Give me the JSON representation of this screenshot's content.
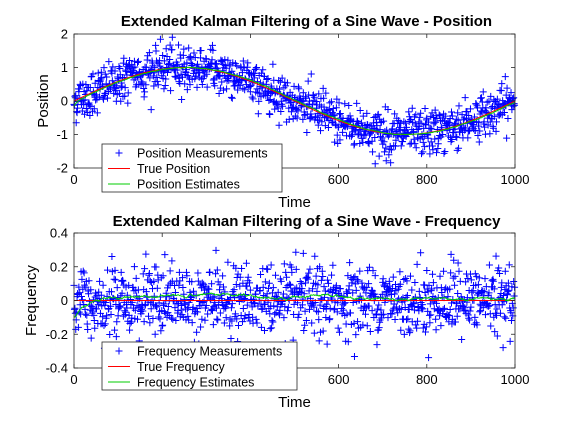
{
  "chart_data": [
    {
      "type": "scatter",
      "title": "Extended Kalman Filtering of a Sine Wave - Position",
      "xlabel": "Time",
      "ylabel": "Position",
      "xlim": [
        0,
        1000
      ],
      "ylim": [
        -2,
        2
      ],
      "xticks": [
        0,
        200,
        400,
        600,
        800,
        1000
      ],
      "yticks": [
        -2,
        -1,
        0,
        1,
        2
      ],
      "legend_position": "bottom-left",
      "series": [
        {
          "name": "Position Measurements",
          "marker": "+",
          "color": "#0000ff",
          "model": "sin(2*pi*t/1000) + noise(sd 0.35)",
          "n": 1000
        },
        {
          "name": "True Position",
          "color": "#ff0000",
          "model": "sin(2*pi*t/1000)"
        },
        {
          "name": "Position Estimates",
          "color": "#00cc00",
          "model": "filter estimate converging to true position"
        }
      ]
    },
    {
      "type": "scatter",
      "title": "Extended Kalman Filtering of a Sine Wave - Frequency",
      "xlabel": "Time",
      "ylabel": "Frequency",
      "xlim": [
        0,
        1000
      ],
      "ylim": [
        -0.4,
        0.4
      ],
      "xticks": [
        0,
        200,
        400,
        600,
        800,
        1000
      ],
      "yticks": [
        -0.4,
        -0.2,
        0,
        0.2,
        0.4
      ],
      "legend_position": "bottom-left",
      "series": [
        {
          "name": "Frequency Measurements",
          "marker": "+",
          "color": "#0000ff",
          "model": "0 + noise(sd 0.1)",
          "n": 1000
        },
        {
          "name": "True Frequency",
          "color": "#ff0000",
          "value": 0
        },
        {
          "name": "Frequency Estimates",
          "color": "#00cc00",
          "model": "starts near -0.1, converges to ~0.02"
        }
      ]
    }
  ]
}
